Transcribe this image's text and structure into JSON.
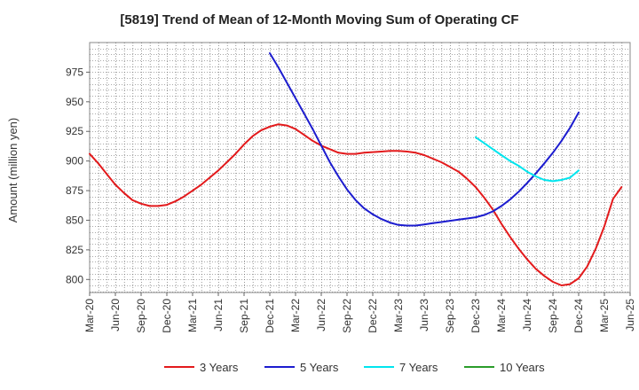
{
  "chart_data": {
    "type": "line",
    "title": "[5819]  Trend of Mean of 12-Month Moving Sum of Operating CF",
    "xlabel": "",
    "ylabel": "Amount (million yen)",
    "ylim": [
      789,
      1000
    ],
    "yticks": [
      800,
      825,
      850,
      875,
      900,
      925,
      950,
      975
    ],
    "x_tick_labels": [
      "Mar-20",
      "Jun-20",
      "Sep-20",
      "Dec-20",
      "Mar-21",
      "Jun-21",
      "Sep-21",
      "Dec-21",
      "Mar-22",
      "Jun-22",
      "Sep-22",
      "Dec-22",
      "Mar-23",
      "Jun-23",
      "Sep-23",
      "Dec-23",
      "Mar-24",
      "Jun-24",
      "Sep-24",
      "Dec-24",
      "Mar-25",
      "Jun-25"
    ],
    "x_start_label": "Mar-20",
    "months_total": 63,
    "grid": true,
    "legend_position": "bottom",
    "series": [
      {
        "name": "3 Years",
        "color": "#e31a1c",
        "start_month_index": 0,
        "values": [
          906,
          898,
          889,
          880,
          873,
          867,
          864,
          862,
          862,
          863,
          866,
          870,
          875,
          880,
          886,
          892,
          899,
          906,
          914,
          921,
          926,
          929,
          931,
          930,
          927,
          922,
          917,
          913,
          910,
          907,
          906,
          906,
          907,
          907.5,
          908,
          908.5,
          908.5,
          908,
          907,
          905,
          902,
          899,
          895,
          891,
          885,
          878,
          869,
          859,
          847,
          836,
          826,
          817,
          809,
          803,
          798,
          795,
          796,
          801,
          811,
          826,
          845,
          868,
          878
        ]
      },
      {
        "name": "5 Years",
        "color": "#1c1ccf",
        "start_month_index": 21,
        "values": [
          991,
          979,
          966,
          953,
          940,
          927,
          913,
          899,
          887,
          876,
          867,
          860,
          855,
          851,
          848,
          846,
          845.5,
          845.5,
          846.5,
          847.5,
          848.5,
          849.5,
          850.5,
          851.5,
          852.5,
          854.5,
          857.5,
          862,
          867.5,
          874,
          881.5,
          889.5,
          898,
          907,
          917,
          928,
          941
        ]
      },
      {
        "name": "7 Years",
        "color": "#00e5ee",
        "start_month_index": 45,
        "values": [
          920,
          915,
          910,
          905,
          900,
          896,
          891,
          887,
          884,
          883,
          884,
          886,
          892
        ]
      },
      {
        "name": "10 Years",
        "color": "#2a9d2a",
        "start_month_index": 0,
        "values": []
      }
    ]
  }
}
